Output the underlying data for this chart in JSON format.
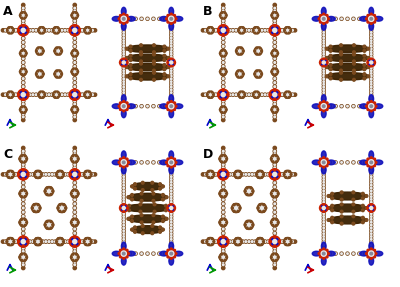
{
  "figure_width": 4.0,
  "figure_height": 2.87,
  "dpi": 100,
  "background_color": "#ffffff",
  "panel_labels": [
    "A",
    "B",
    "C",
    "D"
  ],
  "panel_label_fontsize": 9,
  "panel_label_fontweight": "bold",
  "panel_label_color": "#000000",
  "colors": {
    "brown": "#7B4A1E",
    "brown_light": "#A0612A",
    "red": "#CC2200",
    "blue": "#1111BB",
    "blue_light": "#4444DD",
    "white_atom": "#E8E8E8",
    "cream": "#D4C4A8",
    "dark_brown": "#3A2000",
    "bg": "#ffffff"
  }
}
